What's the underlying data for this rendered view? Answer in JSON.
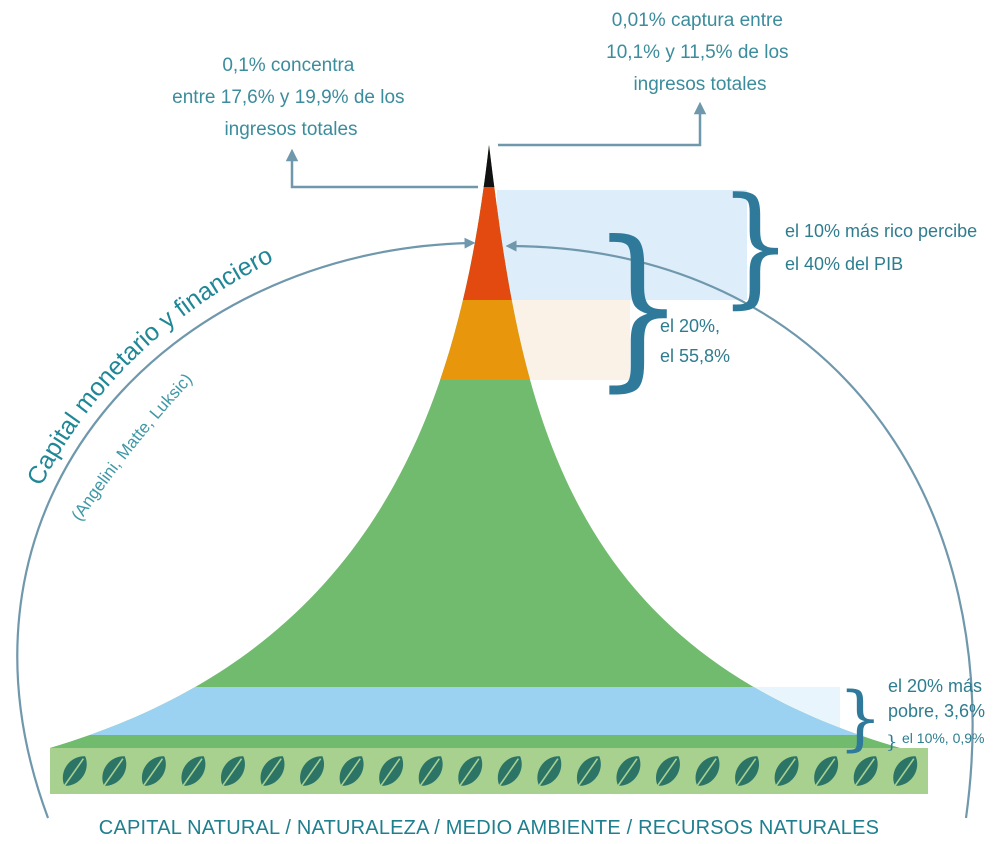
{
  "annotations": {
    "top_left": [
      "0,1% concentra",
      "entre 17,6% y 19,9% de los",
      "ingresos totales"
    ],
    "top_right": [
      "0,01% captura entre",
      "10,1% y 11,5% de los",
      "ingresos totales"
    ],
    "richest_10": [
      "el 10% más rico percibe",
      "el 40% del PIB"
    ],
    "richest_20": [
      "el 20%,",
      "el 55,8%"
    ],
    "poorest_20": [
      "el 20% más",
      "pobre, 3,6%"
    ],
    "poorest_10": "el 10%, 0,9%"
  },
  "arc": {
    "title": "Capital monetario y financiero",
    "subtitle": "(Angelini, Matte, Luksic)"
  },
  "base_label": "CAPITAL NATURAL / NATURALEZA / MEDIO AMBIENTE / RECURSOS NATURALES",
  "leaf_count": 22,
  "colors": {
    "green": "#70bb6e",
    "blue_band": "#9bd2f1",
    "orange": "#e8970d",
    "red": "#e24a0f",
    "tip": "#111111",
    "light_blue_box": "#ddeefa",
    "cream_box": "#fbf2e7",
    "base_strip": "#a8d190",
    "leaf": "#2c7466",
    "arrow": "#6f98ad",
    "brace": "#2f7a9a"
  }
}
